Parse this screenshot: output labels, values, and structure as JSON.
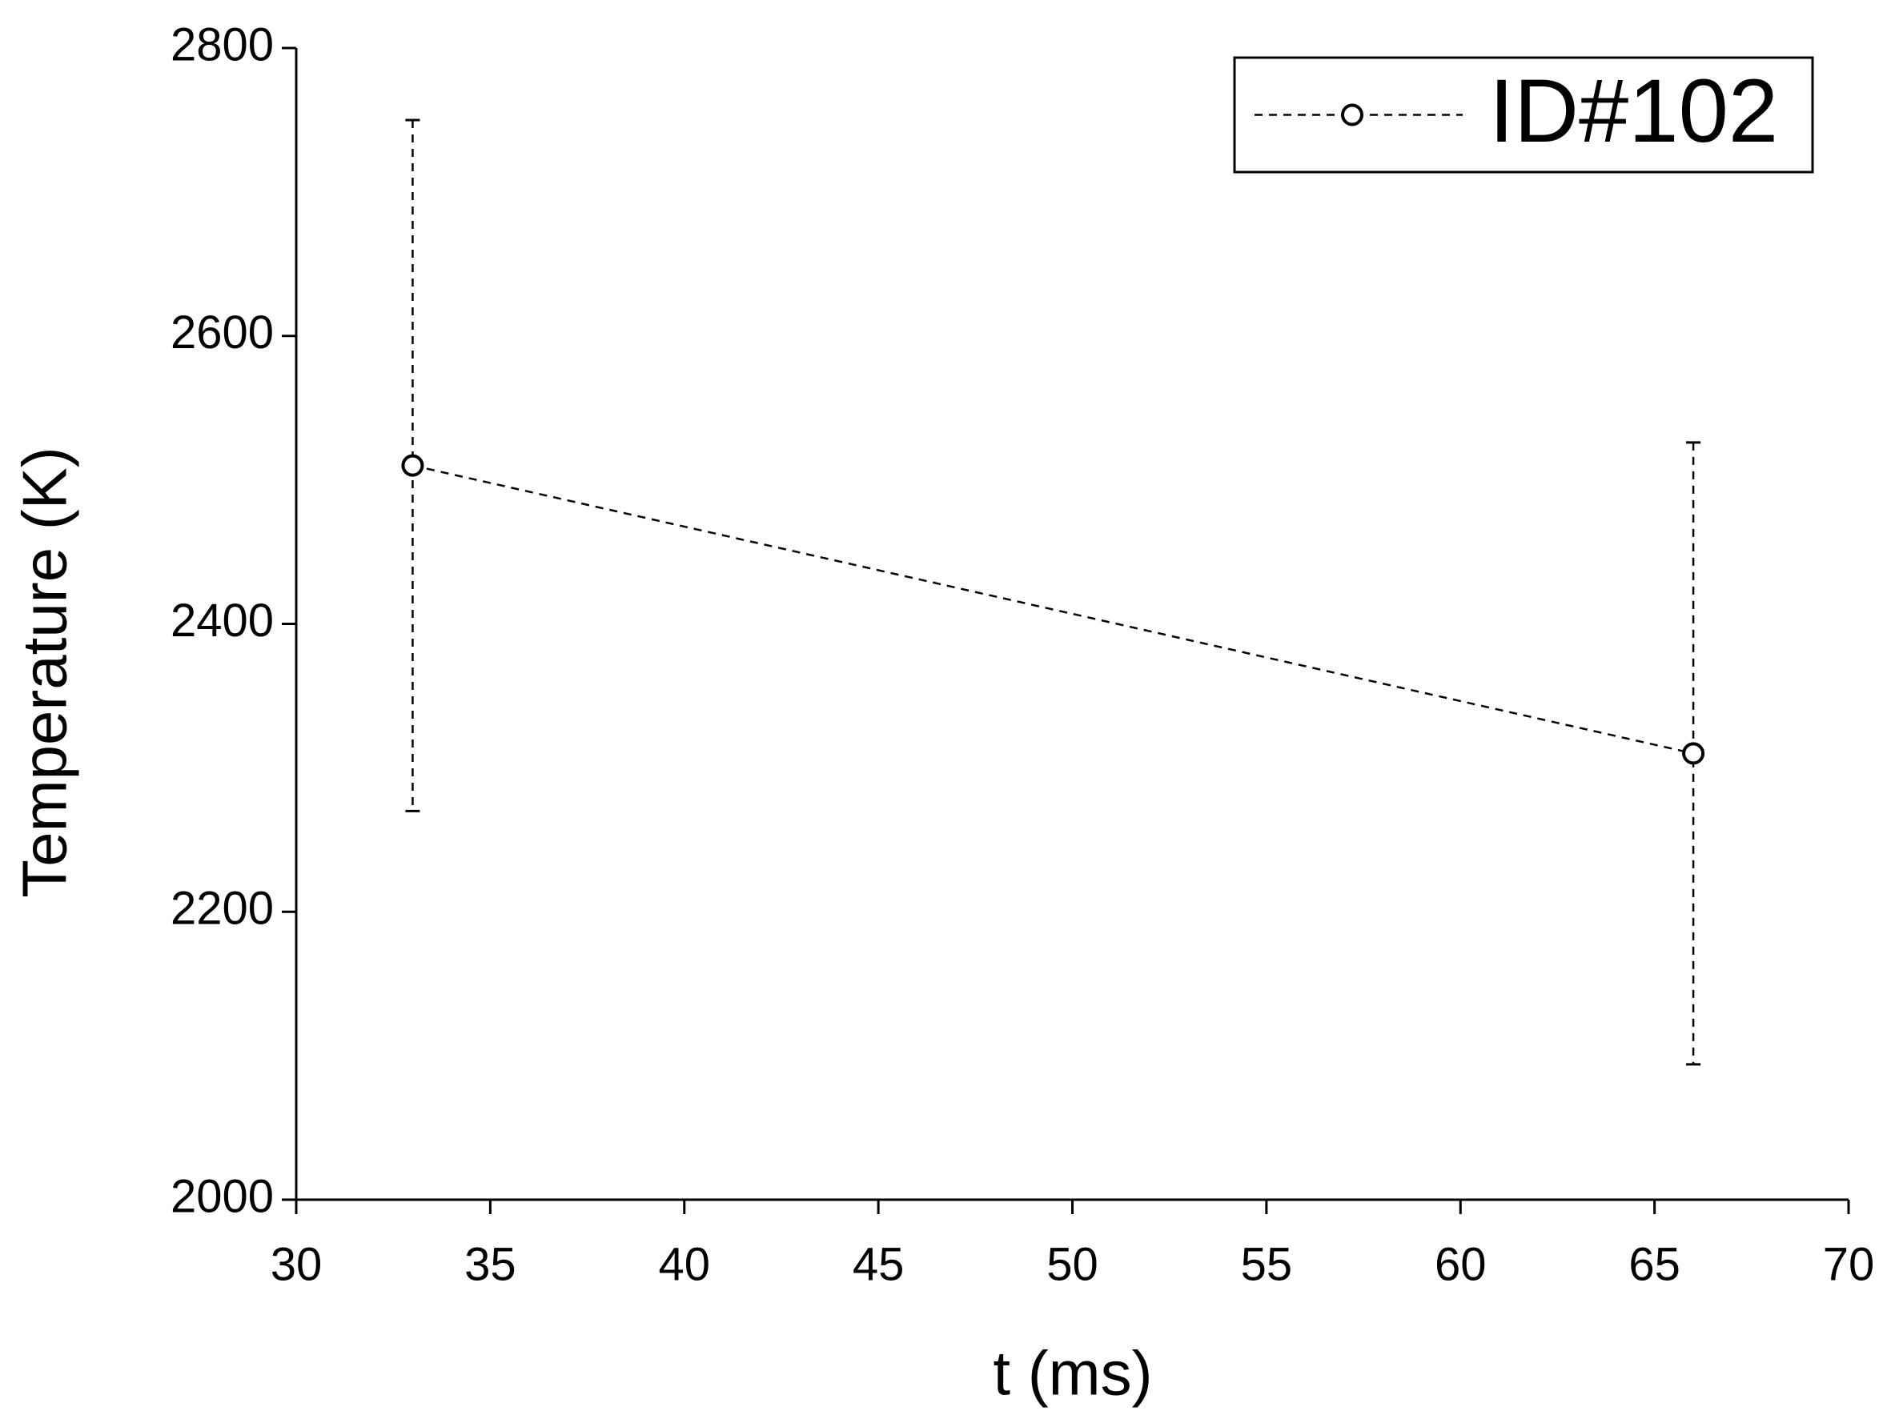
{
  "chart_data": {
    "type": "line",
    "x_label": "t (ms)",
    "y_label": "Temperature (K)",
    "xlim": [
      30,
      70
    ],
    "xticks": [
      30,
      35,
      40,
      45,
      50,
      55,
      60,
      65,
      70
    ],
    "ylim": [
      2000,
      2800
    ],
    "yticks": [
      2000,
      2200,
      2400,
      2600,
      2800
    ],
    "legend": "top-right",
    "series": [
      {
        "name": "ID#102",
        "color": "#000000",
        "x": [
          33,
          66
        ],
        "values": [
          2510,
          2310
        ],
        "errors": [
          240,
          216
        ]
      }
    ]
  }
}
